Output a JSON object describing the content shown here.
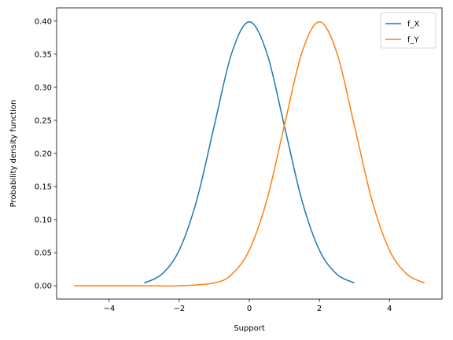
{
  "chart_data": {
    "type": "line",
    "title": "",
    "xlabel": "Support",
    "ylabel": "Probability density function",
    "xlim": [
      -5.5,
      5.5
    ],
    "ylim": [
      -0.02,
      0.42
    ],
    "grid": false,
    "legend_position": "top-right",
    "x_ticks": [
      -4,
      -2,
      0,
      2,
      4
    ],
    "x_tick_labels": [
      "−4",
      "−2",
      "0",
      "2",
      "4"
    ],
    "y_ticks": [
      0.0,
      0.05,
      0.1,
      0.15,
      0.2,
      0.25,
      0.3,
      0.35,
      0.4
    ],
    "y_tick_labels": [
      "0.00",
      "0.05",
      "0.10",
      "0.15",
      "0.20",
      "0.25",
      "0.30",
      "0.35",
      "0.40"
    ],
    "series": [
      {
        "name": "f_X",
        "color": "#1f77b4",
        "x": [
          -3.0,
          -2.5,
          -2.0,
          -1.5,
          -1.0,
          -0.5,
          0.0,
          0.5,
          1.0,
          1.5,
          2.0,
          2.5,
          3.0
        ],
        "y": [
          0.0044,
          0.0175,
          0.054,
          0.1295,
          0.242,
          0.352,
          0.3989,
          0.352,
          0.242,
          0.1295,
          0.054,
          0.0175,
          0.0044
        ]
      },
      {
        "name": "f_Y",
        "color": "#ff7f0e",
        "x": [
          -5.0,
          -4.0,
          -3.0,
          -2.0,
          -1.0,
          -0.5,
          0.0,
          0.5,
          1.0,
          1.5,
          2.0,
          2.5,
          3.0,
          3.5,
          4.0,
          4.5,
          5.0
        ],
        "y": [
          0.0,
          0.0,
          0.0,
          0.0001,
          0.0044,
          0.0175,
          0.054,
          0.1295,
          0.242,
          0.352,
          0.3989,
          0.352,
          0.242,
          0.1295,
          0.054,
          0.0175,
          0.0044
        ]
      }
    ]
  }
}
